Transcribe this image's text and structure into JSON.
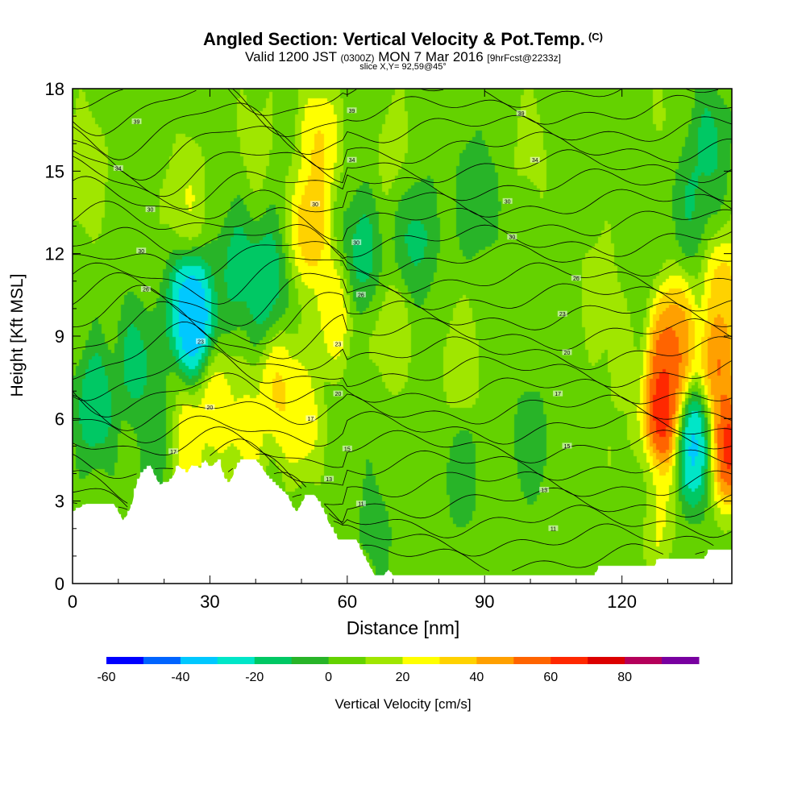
{
  "chart_data": {
    "type": "heatmap",
    "title": "Angled Section: Vertical Velocity & Pot.Temp.",
    "title_tag": "(C)",
    "subtitle_main": "Valid 1200 JST",
    "subtitle_zulu": "(0300Z)",
    "subtitle_date": "MON 7 Mar 2016",
    "subtitle_fcst": "[9hrFcst@2233z]",
    "slice": "slice X,Y= 92,59@45°",
    "xlabel": "Distance [nm]",
    "ylabel": "Height [Kft MSL]",
    "xlim": [
      0,
      144
    ],
    "ylim": [
      0,
      18
    ],
    "x_ticks": [
      "0",
      "30",
      "60",
      "90",
      "120"
    ],
    "y_ticks": [
      "0",
      "3",
      "6",
      "9",
      "12",
      "15",
      "18"
    ],
    "colorbar": {
      "label": "Vertical Velocity [cm/s]",
      "tick_labels": [
        "-60",
        "-40",
        "-20",
        "0",
        "20",
        "40",
        "60",
        "80"
      ],
      "levels": [
        -60,
        -50,
        -40,
        -30,
        -20,
        -10,
        0,
        10,
        20,
        30,
        40,
        50,
        60,
        70,
        80,
        90
      ],
      "colors": [
        "#0000ff",
        "#0064ff",
        "#00c8ff",
        "#00e6c8",
        "#00c864",
        "#28b428",
        "#64d200",
        "#a0e600",
        "#ffff00",
        "#ffd200",
        "#ffa000",
        "#ff6400",
        "#ff2800",
        "#dc0000",
        "#b4005a",
        "#7800a0"
      ]
    },
    "terrain": [
      [
        0,
        2.6
      ],
      [
        3,
        2.9
      ],
      [
        9,
        2.9
      ],
      [
        10,
        2.6
      ],
      [
        11,
        2.3
      ],
      [
        12,
        2.5
      ],
      [
        13,
        2.9
      ],
      [
        14,
        3.6
      ],
      [
        15,
        4.0
      ],
      [
        17,
        4.3
      ],
      [
        18,
        3.9
      ],
      [
        19,
        3.6
      ],
      [
        21,
        3.7
      ],
      [
        22,
        3.9
      ],
      [
        23,
        4.3
      ],
      [
        25,
        4.0
      ],
      [
        26,
        4.3
      ],
      [
        28,
        4.2
      ],
      [
        29,
        4.5
      ],
      [
        30,
        4.2
      ],
      [
        32,
        4.5
      ],
      [
        33,
        3.9
      ],
      [
        34,
        3.6
      ],
      [
        35,
        3.9
      ],
      [
        36,
        4.3
      ],
      [
        37,
        4.5
      ],
      [
        40,
        4.5
      ],
      [
        41,
        4.3
      ],
      [
        43,
        3.8
      ],
      [
        45,
        3.5
      ],
      [
        47,
        3.2
      ],
      [
        48,
        2.8
      ],
      [
        49,
        2.6
      ],
      [
        50,
        2.9
      ],
      [
        51,
        3.2
      ],
      [
        53,
        3.2
      ],
      [
        54,
        2.9
      ],
      [
        55,
        2.6
      ],
      [
        56,
        2.2
      ],
      [
        57,
        1.9
      ],
      [
        58,
        1.6
      ],
      [
        62,
        1.6
      ],
      [
        63,
        1.2
      ],
      [
        64,
        0.9
      ],
      [
        65,
        0.6
      ],
      [
        66,
        0.3
      ],
      [
        68,
        0.3
      ],
      [
        69,
        0.5
      ],
      [
        70,
        0.3
      ],
      [
        114,
        0.3
      ],
      [
        115,
        0.6
      ],
      [
        127,
        0.6
      ],
      [
        128,
        0.9
      ],
      [
        138,
        0.9
      ],
      [
        139,
        1.2
      ],
      [
        144,
        1.2
      ]
    ],
    "velocity_field": {
      "background": 5,
      "features": [
        {
          "x": 3,
          "y": 15,
          "v": 25
        },
        {
          "x": 25,
          "y": 14,
          "v": 25
        },
        {
          "x": 40,
          "y": 16,
          "v": 15
        },
        {
          "x": 70,
          "y": 16,
          "v": 15
        },
        {
          "x": 100,
          "y": 16,
          "v": 15
        },
        {
          "x": 130,
          "y": 17,
          "v": 12
        },
        {
          "x": 5,
          "y": 6.5,
          "v": -25
        },
        {
          "x": 14,
          "y": 8,
          "v": -20
        },
        {
          "x": 25,
          "y": 10,
          "v": -45
        },
        {
          "x": 27,
          "y": 9.5,
          "v": -50
        },
        {
          "x": 42,
          "y": 11,
          "v": -25
        },
        {
          "x": 36,
          "y": 11.5,
          "v": -20
        },
        {
          "x": 63,
          "y": 12,
          "v": -20
        },
        {
          "x": 75,
          "y": 12.5,
          "v": -18
        },
        {
          "x": 88,
          "y": 14,
          "v": -12
        },
        {
          "x": 100,
          "y": 5,
          "v": -10
        },
        {
          "x": 85,
          "y": 4,
          "v": -8
        },
        {
          "x": 66,
          "y": 2,
          "v": -5
        },
        {
          "x": 95,
          "y": 2,
          "v": 8
        },
        {
          "x": 70,
          "y": 9,
          "v": 20
        },
        {
          "x": 85,
          "y": 8,
          "v": 22
        },
        {
          "x": 115,
          "y": 10.5,
          "v": 20
        },
        {
          "x": 120,
          "y": 8,
          "v": 15
        },
        {
          "x": 122,
          "y": 4,
          "v": 18
        },
        {
          "x": 54,
          "y": 16,
          "v": 40
        },
        {
          "x": 52,
          "y": 13,
          "v": 50
        },
        {
          "x": 57,
          "y": 10,
          "v": 35
        },
        {
          "x": 45,
          "y": 7,
          "v": 40
        },
        {
          "x": 50,
          "y": 6,
          "v": 35
        },
        {
          "x": 24,
          "y": 5,
          "v": 42
        },
        {
          "x": 31,
          "y": 6.5,
          "v": 35
        },
        {
          "x": 38,
          "y": 5.5,
          "v": 30
        },
        {
          "x": 20,
          "y": 5.2,
          "v": -15
        },
        {
          "x": 130,
          "y": 8,
          "v": 75
        },
        {
          "x": 128.5,
          "y": 6,
          "v": 85
        },
        {
          "x": 132,
          "y": 9,
          "v": 55
        },
        {
          "x": 141,
          "y": 8,
          "v": 65
        },
        {
          "x": 143,
          "y": 5,
          "v": 85
        },
        {
          "x": 142,
          "y": 10.5,
          "v": 45
        },
        {
          "x": 136,
          "y": 5,
          "v": -45
        },
        {
          "x": 135,
          "y": 14,
          "v": -15
        },
        {
          "x": 139,
          "y": 16,
          "v": -18
        },
        {
          "x": 123,
          "y": 3,
          "v": -12
        },
        {
          "x": 127,
          "y": 2.5,
          "v": 30
        }
      ]
    },
    "theta_contour_labels": [
      {
        "x": 14,
        "y": 16.8,
        "text": "39"
      },
      {
        "x": 61,
        "y": 17.2,
        "text": "39"
      },
      {
        "x": 98,
        "y": 17.1,
        "text": "39"
      },
      {
        "x": 10,
        "y": 15.1,
        "text": "34"
      },
      {
        "x": 61,
        "y": 15.4,
        "text": "34"
      },
      {
        "x": 101,
        "y": 15.4,
        "text": "34"
      },
      {
        "x": 17,
        "y": 13.6,
        "text": "30"
      },
      {
        "x": 53,
        "y": 13.8,
        "text": "30"
      },
      {
        "x": 95,
        "y": 13.9,
        "text": "30"
      },
      {
        "x": 15,
        "y": 12.1,
        "text": "30"
      },
      {
        "x": 62,
        "y": 12.4,
        "text": "30"
      },
      {
        "x": 96,
        "y": 12.6,
        "text": "30"
      },
      {
        "x": 16,
        "y": 10.7,
        "text": "26"
      },
      {
        "x": 63,
        "y": 10.5,
        "text": "26"
      },
      {
        "x": 110,
        "y": 11.1,
        "text": "26"
      },
      {
        "x": 28,
        "y": 8.8,
        "text": "23"
      },
      {
        "x": 58,
        "y": 8.7,
        "text": "23"
      },
      {
        "x": 107,
        "y": 9.8,
        "text": "23"
      },
      {
        "x": 30,
        "y": 6.4,
        "text": "20"
      },
      {
        "x": 58,
        "y": 6.9,
        "text": "20"
      },
      {
        "x": 108,
        "y": 8.4,
        "text": "20"
      },
      {
        "x": 22,
        "y": 4.8,
        "text": "17"
      },
      {
        "x": 52,
        "y": 6.0,
        "text": "17"
      },
      {
        "x": 106,
        "y": 6.9,
        "text": "17"
      },
      {
        "x": 60,
        "y": 4.9,
        "text": "15"
      },
      {
        "x": 108,
        "y": 5.0,
        "text": "15"
      },
      {
        "x": 56,
        "y": 3.8,
        "text": "13"
      },
      {
        "x": 103,
        "y": 3.4,
        "text": "13"
      },
      {
        "x": 63,
        "y": 2.9,
        "text": "11"
      },
      {
        "x": 105,
        "y": 2.0,
        "text": "11"
      }
    ]
  }
}
